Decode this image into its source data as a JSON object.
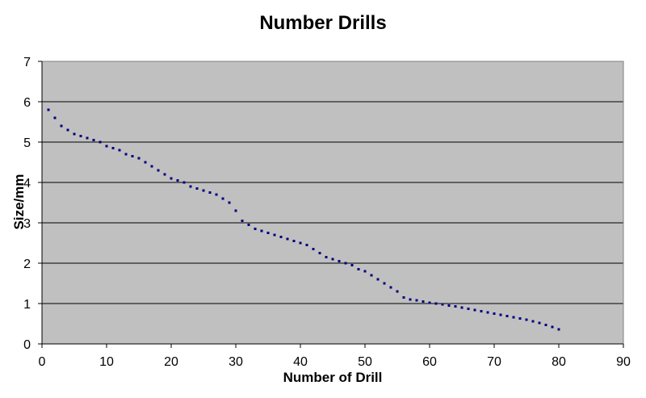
{
  "chart_data": {
    "type": "scatter",
    "title": "Number Drills",
    "xlabel": "Number of Drill",
    "ylabel": "Size/mm",
    "xlim": [
      0,
      90
    ],
    "ylim": [
      0,
      7
    ],
    "x_ticks": [
      0,
      10,
      20,
      30,
      40,
      50,
      60,
      70,
      80,
      90
    ],
    "y_ticks": [
      0,
      1,
      2,
      3,
      4,
      5,
      6,
      7
    ],
    "grid": "horizontal",
    "legend": "none",
    "plot_background": "#c0c0c0",
    "marker_color": "#000080",
    "series": [
      {
        "x": [
          1,
          2,
          3,
          4,
          5,
          6,
          7,
          8,
          9,
          10,
          11,
          12,
          13,
          14,
          15,
          16,
          17,
          18,
          19,
          20,
          21,
          22,
          23,
          24,
          25,
          26,
          27,
          28,
          29,
          30,
          31,
          32,
          33,
          34,
          35,
          36,
          37,
          38,
          39,
          40,
          41,
          42,
          43,
          44,
          45,
          46,
          47,
          48,
          49,
          50,
          51,
          52,
          53,
          54,
          55,
          56,
          57,
          58,
          59,
          60,
          61,
          62,
          63,
          64,
          65,
          66,
          67,
          68,
          69,
          70,
          71,
          72,
          73,
          74,
          75,
          76,
          77,
          78,
          79,
          80
        ],
        "values": [
          5.8,
          5.6,
          5.4,
          5.3,
          5.2,
          5.15,
          5.1,
          5.05,
          5.0,
          4.9,
          4.85,
          4.8,
          4.7,
          4.65,
          4.6,
          4.5,
          4.4,
          4.3,
          4.2,
          4.1,
          4.05,
          4.0,
          3.9,
          3.85,
          3.8,
          3.75,
          3.7,
          3.6,
          3.5,
          3.3,
          3.05,
          2.95,
          2.85,
          2.8,
          2.75,
          2.7,
          2.65,
          2.6,
          2.55,
          2.5,
          2.45,
          2.35,
          2.25,
          2.15,
          2.1,
          2.05,
          2.0,
          1.95,
          1.85,
          1.8,
          1.7,
          1.6,
          1.5,
          1.4,
          1.3,
          1.15,
          1.1,
          1.08,
          1.05,
          1.02,
          1.0,
          0.98,
          0.95,
          0.93,
          0.9,
          0.87,
          0.84,
          0.81,
          0.78,
          0.75,
          0.72,
          0.69,
          0.66,
          0.63,
          0.6,
          0.56,
          0.52,
          0.47,
          0.42,
          0.36
        ]
      }
    ]
  }
}
